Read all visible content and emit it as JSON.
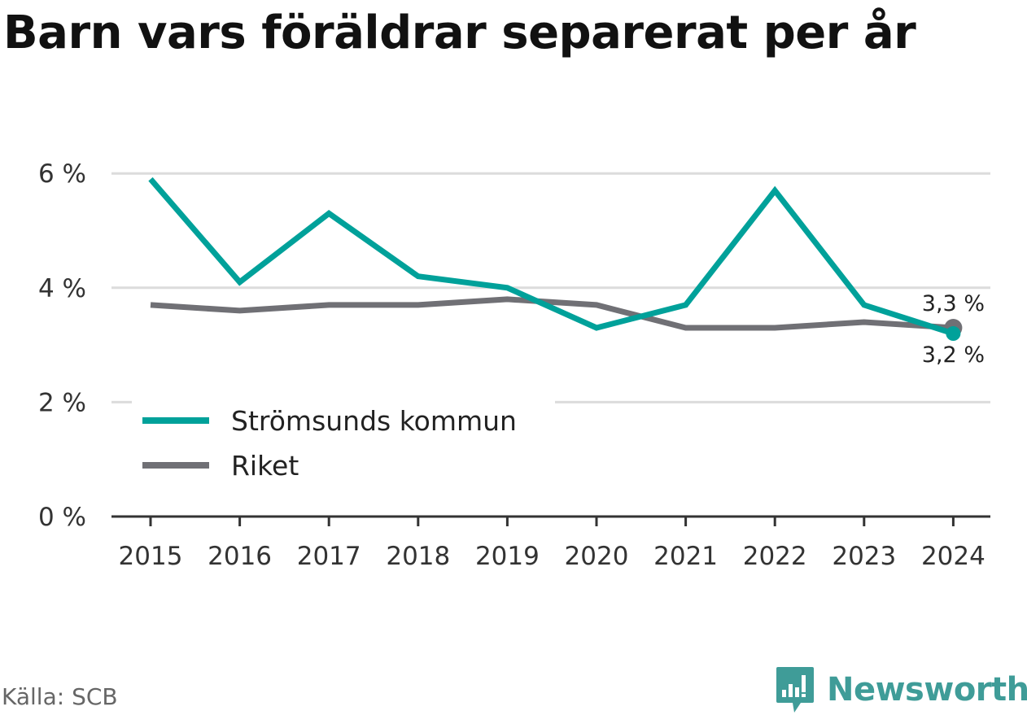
{
  "chart_data": {
    "type": "line",
    "title": "Barn vars föräldrar separerat per år",
    "x": [
      "2015",
      "2016",
      "2017",
      "2018",
      "2019",
      "2020",
      "2021",
      "2022",
      "2023",
      "2024"
    ],
    "series": [
      {
        "name": "Strömsunds kommun",
        "color": "#00a19a",
        "values": [
          5.9,
          4.1,
          5.3,
          4.2,
          4.0,
          3.3,
          3.7,
          5.7,
          3.7,
          3.2
        ],
        "end_label": "3,2 %"
      },
      {
        "name": "Riket",
        "color": "#707075",
        "values": [
          3.7,
          3.6,
          3.7,
          3.7,
          3.8,
          3.7,
          3.3,
          3.3,
          3.4,
          3.3
        ],
        "end_label": "3,3 %"
      }
    ],
    "ylim": [
      0,
      6
    ],
    "yticks": [
      0,
      2,
      4,
      6
    ],
    "ytick_labels": [
      "0 %",
      "2 %",
      "4 %",
      "6 %"
    ],
    "grid": true,
    "legend_position": "bottom-left"
  },
  "source": "Källa: SCB",
  "brand": {
    "name": "Newsworthy",
    "icon": "newsworthy-logo-icon",
    "color": "#3f9c98"
  }
}
